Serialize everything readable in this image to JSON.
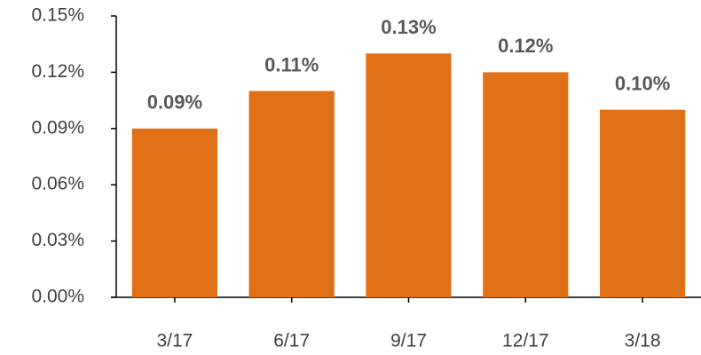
{
  "chart_data": {
    "type": "bar",
    "categories": [
      "3/17",
      "6/17",
      "9/17",
      "12/17",
      "3/18"
    ],
    "values": [
      0.09,
      0.11,
      0.13,
      0.12,
      0.1
    ],
    "value_labels": [
      "0.09%",
      "0.11%",
      "0.13%",
      "0.12%",
      "0.10%"
    ],
    "color": "#e07017",
    "ylim": [
      0,
      0.15
    ],
    "yticks": [
      {
        "value": 0,
        "label": "0.00%"
      },
      {
        "value": 0.03,
        "label": "0.03%"
      },
      {
        "value": 0.06,
        "label": "0.06%"
      },
      {
        "value": 0.09,
        "label": "0.09%"
      },
      {
        "value": 0.12,
        "label": "0.12%"
      },
      {
        "value": 0.15,
        "label": "0.15%"
      }
    ],
    "grid": false
  }
}
